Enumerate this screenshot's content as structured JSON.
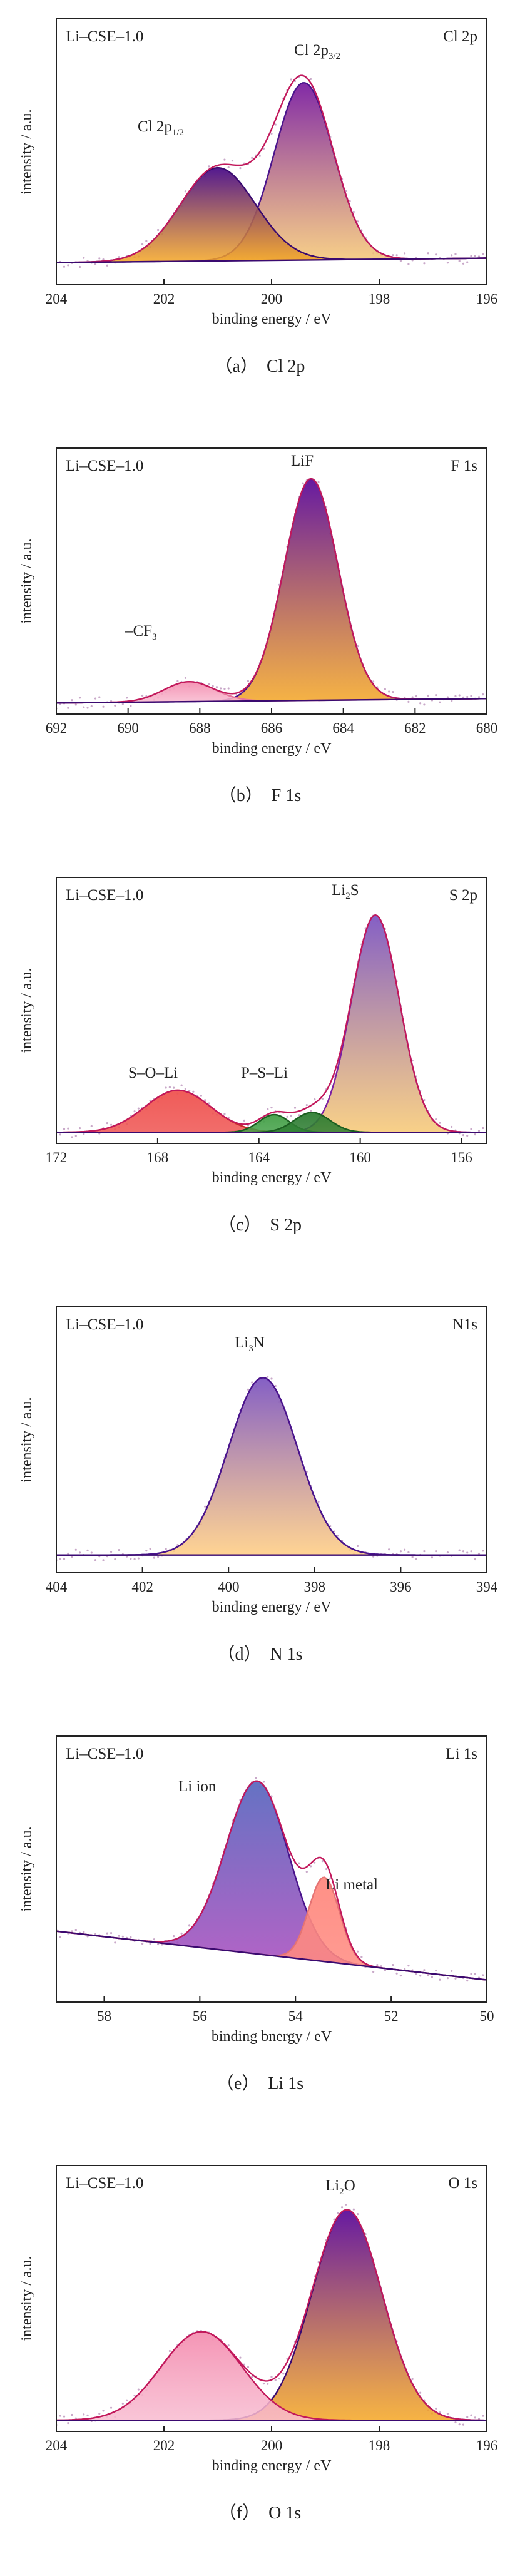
{
  "panels": [
    {
      "caption": "（a）　Cl 2p",
      "chart_data": {
        "type": "area",
        "sample": "Li–CSE–1.0",
        "region": "Cl 2p",
        "xlabel": "binding energy / eV",
        "ylabel": "intensity / a.u.",
        "xlim": [
          204,
          196
        ],
        "xticks": [
          204,
          202,
          200,
          198,
          196
        ],
        "ylim": [
          0,
          1.2
        ],
        "baseline": [
          0.1,
          0.12
        ],
        "peaks": [
          {
            "label": "Cl 2p3/2",
            "label_main": "Cl 2p",
            "label_sub": "3/2",
            "center": 199.4,
            "height": 0.8,
            "sigma": 0.55,
            "gradient": [
              "#7b1fa2",
              "#f7c873"
            ],
            "outline": "#4a148c"
          },
          {
            "label": "Cl 2p1/2",
            "label_main": "Cl 2p",
            "label_sub": "1/2",
            "center": 201.0,
            "height": 0.42,
            "sigma": 0.7,
            "gradient": [
              "#4a0d8a",
              "#f5a623"
            ],
            "outline": "#3a0a70"
          }
        ],
        "envelope_color": "#c2185b"
      }
    },
    {
      "caption": "（b）　F 1s",
      "chart_data": {
        "type": "area",
        "sample": "Li–CSE–1.0",
        "region": "F 1s",
        "xlabel": "binding energy / eV",
        "ylabel": "intensity / a.u.",
        "xlim": [
          692,
          680
        ],
        "xticks": [
          692,
          690,
          688,
          686,
          684,
          682,
          680
        ],
        "ylim": [
          0,
          1.2
        ],
        "baseline": [
          0.05,
          0.07
        ],
        "peaks": [
          {
            "label": "LiF",
            "label_main": "LiF",
            "label_sub": "",
            "center": 684.9,
            "height": 1.0,
            "sigma": 0.75,
            "gradient": [
              "#5e0d9c",
              "#f5a623"
            ],
            "outline": "#4a148c"
          },
          {
            "label": "–CF3",
            "label_main": "–CF",
            "label_sub": "3",
            "center": 688.3,
            "height": 0.09,
            "sigma": 0.7,
            "gradient": [
              "#f48fb1",
              "#f8bbd0"
            ],
            "outline": "#e57399"
          }
        ],
        "envelope_color": "#c2185b"
      }
    },
    {
      "caption": "（c）　S 2p",
      "chart_data": {
        "type": "area",
        "sample": "Li–CSE–1.0",
        "region": "S 2p",
        "xlabel": "binding energy / eV",
        "ylabel": "intensity / a.u.",
        "xlim": [
          172,
          155
        ],
        "xticks": [
          172,
          168,
          164,
          160,
          156
        ],
        "ylim": [
          0,
          1.2
        ],
        "baseline": [
          0.05,
          0.05
        ],
        "peaks": [
          {
            "label": "Li2S",
            "label_main": "Li",
            "label_sub": "2",
            "label_tail": "S",
            "center": 159.4,
            "height": 0.98,
            "sigma": 0.95,
            "gradient": [
              "#7e57c2",
              "#f7c873"
            ],
            "outline": "#7b1fa2"
          },
          {
            "label": "S–O–Li",
            "label_main": "S–O–Li",
            "label_sub": "",
            "center": 167.2,
            "height": 0.19,
            "sigma": 1.3,
            "gradient": [
              "#ef5350",
              "#ef5350"
            ],
            "outline": "#c62828"
          },
          {
            "label": "P–S–Li",
            "label_main": "P–S–Li",
            "label_sub": "",
            "center": 163.4,
            "height": 0.08,
            "sigma": 0.6,
            "gradient": [
              "#43a047",
              "#43a047"
            ],
            "outline": "#1b5e20"
          },
          {
            "label": "P–S–Li",
            "label_main": "",
            "label_sub": "",
            "center": 161.9,
            "height": 0.09,
            "sigma": 0.7,
            "gradient": [
              "#2e7d32",
              "#2e7d32"
            ],
            "outline": "#1b5e20"
          }
        ],
        "envelope_color": "#c2185b"
      }
    },
    {
      "caption": "（d）　N 1s",
      "chart_data": {
        "type": "area",
        "sample": "Li–CSE–1.0",
        "region": "N1s",
        "xlabel": "binding energy / eV",
        "ylabel": "intensity / a.u.",
        "xlim": [
          404,
          394
        ],
        "xticks": [
          404,
          402,
          400,
          398,
          396,
          394
        ],
        "ylim": [
          0,
          1.2
        ],
        "baseline": [
          0.08,
          0.08
        ],
        "peaks": [
          {
            "label": "Li3N",
            "label_main": "Li",
            "label_sub": "3",
            "label_tail": "N",
            "center": 399.2,
            "height": 0.8,
            "sigma": 0.8,
            "gradient": [
              "#7e57c2",
              "#ffcc80"
            ],
            "outline": "#4a148c"
          }
        ],
        "envelope_color": "#4a148c"
      }
    },
    {
      "caption": "（e）　Li 1s",
      "chart_data": {
        "type": "area",
        "sample": "Li–CSE–1.0",
        "region": "Li 1s",
        "xlabel": "binding bnergy / eV",
        "ylabel": "intensity / a.u.",
        "xlim": [
          59,
          50
        ],
        "xticks": [
          58,
          56,
          54,
          52,
          50
        ],
        "ylim": [
          0,
          1.2
        ],
        "baseline": [
          0.32,
          0.1
        ],
        "peaks": [
          {
            "label": "Li ion",
            "label_main": "Li ion",
            "label_sub": "",
            "center": 54.8,
            "height": 0.78,
            "sigma": 0.65,
            "gradient": [
              "#5c6bc0",
              "#ab47bc"
            ],
            "outline": "#4a148c"
          },
          {
            "label": "Li metal",
            "label_main": "Li metal",
            "label_sub": "",
            "center": 53.4,
            "height": 0.38,
            "sigma": 0.32,
            "gradient": [
              "#ff8a80",
              "#ff8a80"
            ],
            "outline": "#e57373"
          }
        ],
        "envelope_color": "#c2185b"
      }
    },
    {
      "caption": "（f）　O 1s",
      "chart_data": {
        "type": "area",
        "sample": "Li–CSE–1.0",
        "region": "O 1s",
        "xlabel": "binding energy / eV",
        "ylabel": "intensity / a.u.",
        "xlim": [
          204,
          196
        ],
        "xticks": [
          204,
          202,
          200,
          198,
          196
        ],
        "ylim": [
          0,
          1.2
        ],
        "baseline": [
          0.05,
          0.05
        ],
        "peaks": [
          {
            "label": "Li2O",
            "label_main": "Li",
            "label_sub": "2",
            "label_tail": "O",
            "center": 198.6,
            "height": 0.95,
            "sigma": 0.65,
            "gradient": [
              "#5e0d9c",
              "#f5a623"
            ],
            "outline": "#3a0a70"
          },
          {
            "label": "",
            "label_main": "",
            "label_sub": "",
            "center": 201.3,
            "height": 0.4,
            "sigma": 0.75,
            "gradient": [
              "#f48fb1",
              "#f8bbd0"
            ],
            "outline": "#c2185b"
          }
        ],
        "envelope_color": "#c2185b"
      }
    }
  ]
}
